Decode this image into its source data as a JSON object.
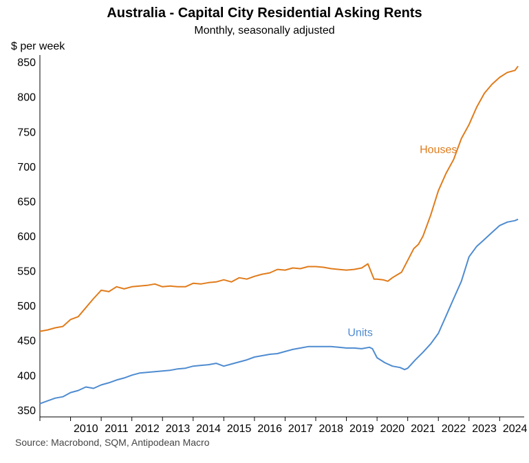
{
  "chart_data": {
    "type": "line",
    "title": "Australia - Capital City Residential Asking Rents",
    "subtitle": "Monthly, seasonally adjusted",
    "ylabel": "$ per week",
    "xlabel": "",
    "source": "Source: Macrobond, SQM, Antipodean Macro",
    "ylim": [
      340,
      860
    ],
    "xlim": [
      2009.0,
      2024.8
    ],
    "y_ticks": [
      350,
      400,
      450,
      500,
      550,
      600,
      650,
      700,
      750,
      800,
      850
    ],
    "x_ticks": [
      "2010",
      "2011",
      "2012",
      "2013",
      "2014",
      "2015",
      "2016",
      "2017",
      "2018",
      "2019",
      "2020",
      "2021",
      "2022",
      "2023",
      "2024"
    ],
    "grid": false,
    "series": [
      {
        "name": "Houses",
        "color": "#E07B1A",
        "x": [
          2009.0,
          2009.25,
          2009.5,
          2009.75,
          2010.0,
          2010.25,
          2010.5,
          2010.75,
          2011.0,
          2011.25,
          2011.5,
          2011.75,
          2012.0,
          2012.25,
          2012.5,
          2012.75,
          2013.0,
          2013.25,
          2013.5,
          2013.75,
          2014.0,
          2014.25,
          2014.5,
          2014.75,
          2015.0,
          2015.25,
          2015.5,
          2015.75,
          2016.0,
          2016.25,
          2016.5,
          2016.75,
          2017.0,
          2017.25,
          2017.5,
          2017.75,
          2018.0,
          2018.25,
          2018.5,
          2018.75,
          2019.0,
          2019.25,
          2019.5,
          2019.7,
          2019.9,
          2020.0,
          2020.2,
          2020.35,
          2020.5,
          2020.65,
          2020.8,
          2021.0,
          2021.2,
          2021.35,
          2021.5,
          2021.75,
          2022.0,
          2022.25,
          2022.5,
          2022.75,
          2023.0,
          2023.25,
          2023.5,
          2023.75,
          2024.0,
          2024.25,
          2024.5,
          2024.6
        ],
        "values": [
          463,
          465,
          468,
          470,
          480,
          484,
          497,
          510,
          522,
          520,
          527,
          524,
          527,
          528,
          529,
          531,
          527,
          528,
          527,
          527,
          532,
          531,
          533,
          534,
          537,
          534,
          540,
          538,
          542,
          545,
          547,
          552,
          551,
          554,
          553,
          556,
          556,
          555,
          553,
          552,
          551,
          552,
          554,
          560,
          538,
          538,
          537,
          535,
          540,
          544,
          548,
          565,
          582,
          588,
          600,
          630,
          665,
          690,
          710,
          740,
          760,
          785,
          805,
          818,
          828,
          835,
          838,
          844
        ]
      },
      {
        "name": "Units",
        "color": "#4E8BD0",
        "x": [
          2009.0,
          2009.25,
          2009.5,
          2009.75,
          2010.0,
          2010.25,
          2010.5,
          2010.75,
          2011.0,
          2011.25,
          2011.5,
          2011.75,
          2012.0,
          2012.25,
          2012.5,
          2012.75,
          2013.0,
          2013.25,
          2013.5,
          2013.75,
          2014.0,
          2014.25,
          2014.5,
          2014.75,
          2015.0,
          2015.25,
          2015.5,
          2015.75,
          2016.0,
          2016.25,
          2016.5,
          2016.75,
          2017.0,
          2017.25,
          2017.5,
          2017.75,
          2018.0,
          2018.25,
          2018.5,
          2018.75,
          2019.0,
          2019.25,
          2019.5,
          2019.75,
          2019.85,
          2020.0,
          2020.25,
          2020.5,
          2020.75,
          2020.9,
          2021.0,
          2021.25,
          2021.5,
          2021.75,
          2022.0,
          2022.25,
          2022.5,
          2022.75,
          2023.0,
          2023.25,
          2023.5,
          2023.75,
          2024.0,
          2024.25,
          2024.5,
          2024.6
        ],
        "values": [
          359,
          363,
          367,
          369,
          375,
          378,
          383,
          381,
          386,
          389,
          393,
          396,
          400,
          403,
          404,
          405,
          406,
          407,
          409,
          410,
          413,
          414,
          415,
          417,
          413,
          416,
          419,
          422,
          426,
          428,
          430,
          431,
          434,
          437,
          439,
          441,
          441,
          441,
          441,
          440,
          439,
          439,
          438,
          440,
          438,
          425,
          418,
          413,
          411,
          408,
          410,
          422,
          433,
          445,
          460,
          485,
          510,
          535,
          570,
          585,
          595,
          605,
          615,
          620,
          622,
          624
        ]
      }
    ],
    "annotations": [
      {
        "text": "Houses",
        "x": 2022.0,
        "y": 719,
        "color": "#E07B1A"
      },
      {
        "text": "Units",
        "x": 2019.45,
        "y": 456,
        "color": "#4E8BD0"
      }
    ]
  }
}
